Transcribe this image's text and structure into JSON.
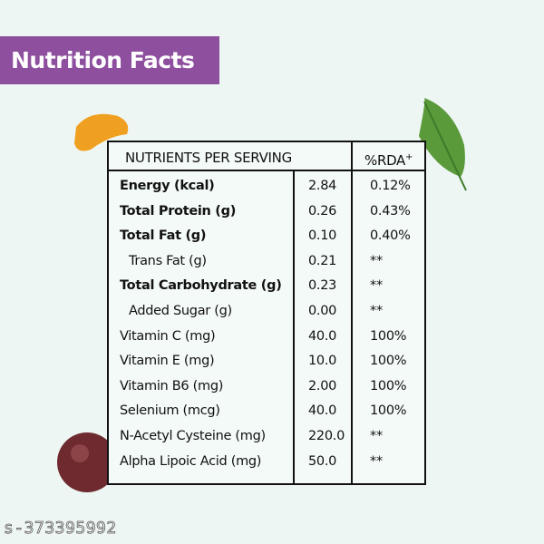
{
  "header": {
    "title": "Nutrition Facts"
  },
  "table": {
    "columns": [
      "NUTRIENTS PER SERVING",
      "%RDA",
      "+"
    ],
    "rows": [
      [
        "Energy (kcal)",
        "2.84",
        "0.12%"
      ],
      [
        "Total Protein (g)",
        "0.26",
        "0.43%"
      ],
      [
        "Total Fat (g)",
        "0.10",
        "0.40%"
      ],
      [
        "Trans Fat (g)",
        "0.21",
        "**"
      ],
      [
        "Total Carbohydrate (g)",
        "0.23",
        "**"
      ],
      [
        "Added Sugar (g)",
        "0.00",
        "**"
      ],
      [
        "Vitamin C (mg)",
        "40.0",
        "100%"
      ],
      [
        "Vitamin E (mg)",
        "10.0",
        "100%"
      ],
      [
        "Vitamin B6 (mg)",
        "2.00",
        "100%"
      ],
      [
        "Selenium (mcg)",
        "40.0",
        "100%"
      ],
      [
        "N-Acetyl Cysteine (mg)",
        "220.0",
        "**"
      ],
      [
        "Alpha Lipoic Acid (mg)",
        "50.0",
        "**"
      ]
    ]
  },
  "watermark": "s-373395992"
}
